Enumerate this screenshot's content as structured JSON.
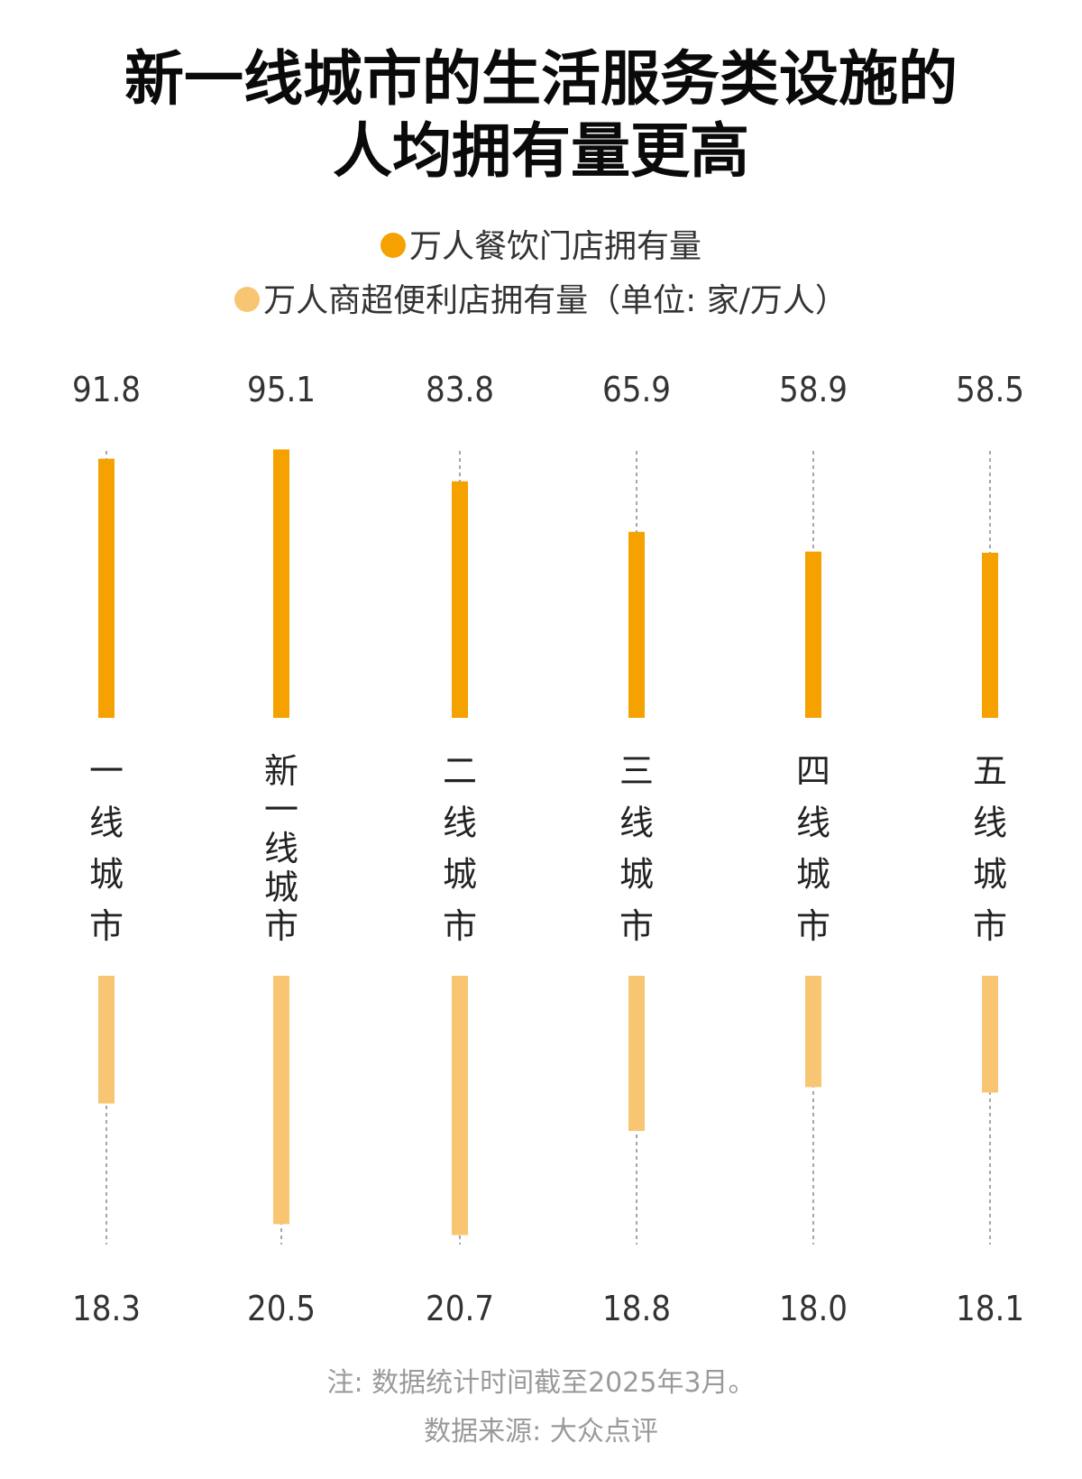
{
  "title": {
    "line1": "新一线城市的生活服务类设施的",
    "line2": "人均拥有量更高"
  },
  "legend": {
    "item1": "万人餐饮门店拥有量",
    "item2": "万人商超便利店拥有量（单位: 家/万人）"
  },
  "colors": {
    "restaurant": "#F5A100",
    "supermarket": "#F8C672",
    "guide": "#888888"
  },
  "footnote": "注: 数据统计时间截至2025年3月。",
  "source": "数据来源: 大众点评",
  "chart_data": {
    "type": "bar",
    "categories": [
      "一线城市",
      "新一线城市",
      "二线城市",
      "三线城市",
      "四线城市",
      "五线城市"
    ],
    "series": [
      {
        "name": "万人餐饮门店拥有量",
        "values": [
          91.8,
          95.1,
          83.8,
          65.9,
          58.9,
          58.5
        ],
        "labels": [
          "91.8",
          "95.1",
          "83.8",
          "65.9",
          "58.9",
          "58.5"
        ]
      },
      {
        "name": "万人商超便利店拥有量",
        "values": [
          18.3,
          20.5,
          20.7,
          18.8,
          18.0,
          18.1
        ],
        "labels": [
          "18.3",
          "20.5",
          "20.7",
          "18.8",
          "18.0",
          "18.1"
        ]
      }
    ],
    "unit": "家/万人",
    "grid": false,
    "legend_position": "top-center"
  }
}
